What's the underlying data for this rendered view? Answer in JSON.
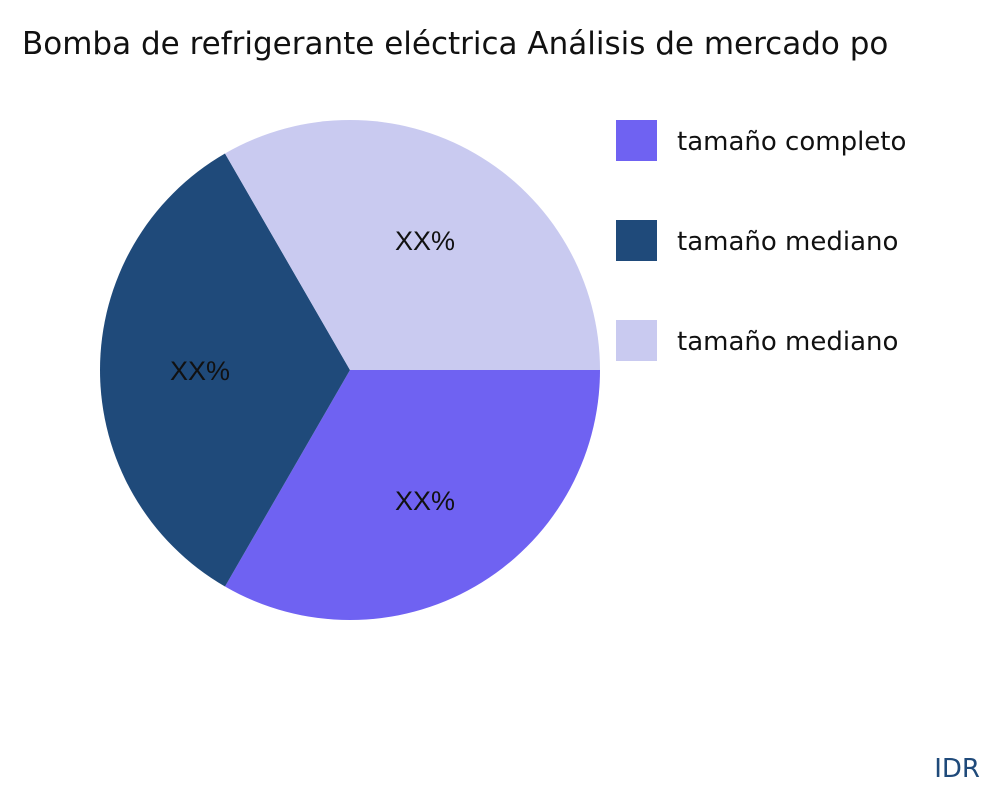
{
  "chart_data": {
    "type": "pie",
    "title": "Bomba de refrigerante eléctrica Análisis de mercado po",
    "slices": [
      {
        "label": "tamaño completo",
        "value": 33.33,
        "data_label": "XX%",
        "color": "#6f62f2"
      },
      {
        "label": "tamaño mediano",
        "value": 33.33,
        "data_label": "XX%",
        "color": "#1f4a7a"
      },
      {
        "label": "tamaño mediano",
        "value": 33.33,
        "data_label": "XX%",
        "color": "#c9caf0"
      }
    ],
    "legend_placement": "right"
  },
  "watermark": "IDR"
}
